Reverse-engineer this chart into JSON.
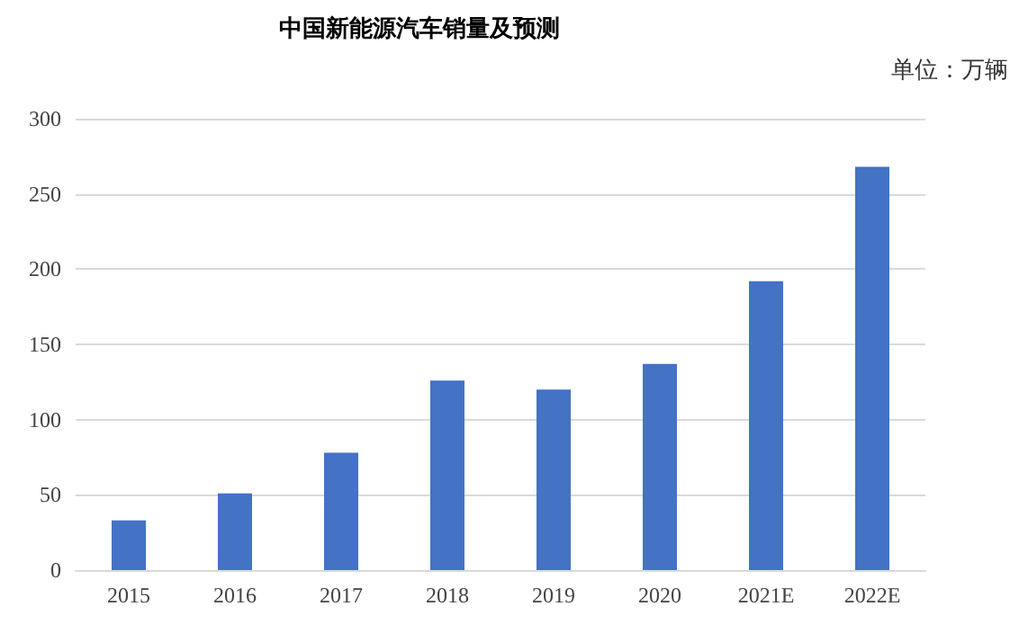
{
  "chart_data": {
    "type": "bar",
    "title": "中国新能源汽车销量及预测",
    "ylabel": "单位：万辆",
    "categories": [
      "2015",
      "2016",
      "2017",
      "2018",
      "2019",
      "2020",
      "2021E",
      "2022E"
    ],
    "values": [
      33,
      51,
      78,
      126,
      120,
      137,
      192,
      268
    ],
    "color": "#4472c4",
    "ylim": [
      0,
      300
    ],
    "yticks": [
      0,
      50,
      100,
      150,
      200,
      250,
      300
    ],
    "grid": "y"
  }
}
